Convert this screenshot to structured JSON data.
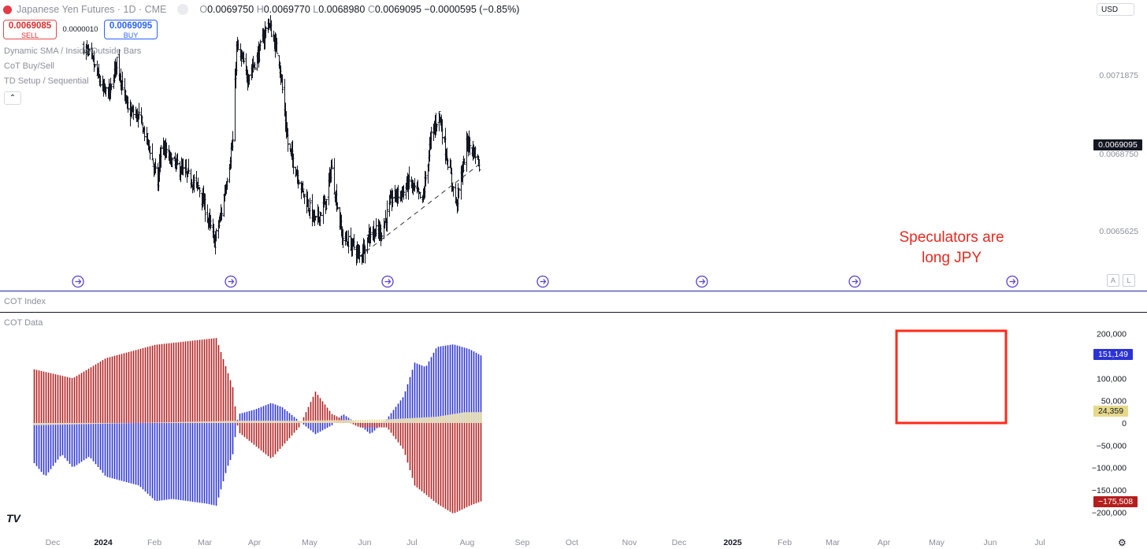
{
  "header": {
    "title": "Japanese Yen Futures · 1D · CME",
    "o_key": "O",
    "o_val": "0.0069750",
    "h_key": "H",
    "h_val": "0.0069770",
    "l_key": "L",
    "l_val": "0.0068980",
    "c_key": "C",
    "c_val": "0.0069095",
    "change": "−0.0000595 (−0.85%)",
    "currency": "USD"
  },
  "trade": {
    "sell_price": "0.0069085",
    "sell_label": "SELL",
    "spread": "0.0000010",
    "buy_price": "0.0069095",
    "buy_label": "BUY"
  },
  "indicators": [
    "Dynamic SMA / Inside/Outside Bars",
    "CoT Buy/Sell",
    "TD Setup / Sequential"
  ],
  "panes": {
    "cot_index": "COT Index",
    "cot_data": "COT Data"
  },
  "annotation": {
    "line1": "Speculators are",
    "line2": "long JPY"
  },
  "colors": {
    "bull": "#2b33d6",
    "bear": "#b41e1e",
    "commercial": "#e6d98a",
    "highlight": "#ff2a1a",
    "separator": "#5b5bb5"
  },
  "chart_data": [
    {
      "type": "ohlc",
      "title": "Japanese Yen Futures",
      "price_ticks": [
        "0.0071875",
        "0.0068750",
        "0.0065625"
      ],
      "last_price_label": "0.0069095",
      "x_ticks": [
        "Dec",
        "2024",
        "Feb",
        "Mar",
        "Apr",
        "May",
        "Jun",
        "Jul",
        "Aug",
        "Sep",
        "Oct",
        "Nov",
        "Dec",
        "2025",
        "Feb",
        "Mar",
        "Apr",
        "May",
        "Jun",
        "Jul"
      ],
      "ylim": [
        0.00648,
        0.00754
      ],
      "close_path": [
        {
          "date": "2024-01-26",
          "close": 0.00738
        },
        {
          "date": "2024-02-05",
          "close": 0.00733
        },
        {
          "date": "2024-02-20",
          "close": 0.0072
        },
        {
          "date": "2024-02-29",
          "close": 0.0072
        },
        {
          "date": "2024-03-08",
          "close": 0.00733
        },
        {
          "date": "2024-03-22",
          "close": 0.00712
        },
        {
          "date": "2024-04-05",
          "close": 0.0071
        },
        {
          "date": "2024-04-19",
          "close": 0.00697
        },
        {
          "date": "2024-04-29",
          "close": 0.00683
        },
        {
          "date": "2024-05-03",
          "close": 0.00698
        },
        {
          "date": "2024-05-17",
          "close": 0.00692
        },
        {
          "date": "2024-06-07",
          "close": 0.00686
        },
        {
          "date": "2024-06-21",
          "close": 0.00681
        },
        {
          "date": "2024-07-10",
          "close": 0.0066
        },
        {
          "date": "2024-07-19",
          "close": 0.00672
        },
        {
          "date": "2024-08-02",
          "close": 0.007
        },
        {
          "date": "2024-08-07",
          "close": 0.00738
        },
        {
          "date": "2024-08-21",
          "close": 0.00726
        },
        {
          "date": "2024-09-04",
          "close": 0.00735
        },
        {
          "date": "2024-09-16",
          "close": 0.00748
        },
        {
          "date": "2024-09-30",
          "close": 0.00733
        },
        {
          "date": "2024-10-11",
          "close": 0.00699
        },
        {
          "date": "2024-10-31",
          "close": 0.00679
        },
        {
          "date": "2024-11-15",
          "close": 0.00668
        },
        {
          "date": "2024-11-29",
          "close": 0.00676
        },
        {
          "date": "2024-12-05",
          "close": 0.0069
        },
        {
          "date": "2024-12-19",
          "close": 0.00662
        },
        {
          "date": "2025-01-03",
          "close": 0.00658
        },
        {
          "date": "2025-01-10",
          "close": 0.00654
        },
        {
          "date": "2025-01-24",
          "close": 0.00664
        },
        {
          "date": "2025-02-07",
          "close": 0.00664
        },
        {
          "date": "2025-02-21",
          "close": 0.00678
        },
        {
          "date": "2025-03-07",
          "close": 0.0068
        },
        {
          "date": "2025-03-14",
          "close": 0.00684
        },
        {
          "date": "2025-03-31",
          "close": 0.00676
        },
        {
          "date": "2025-04-11",
          "close": 0.00702
        },
        {
          "date": "2025-04-21",
          "close": 0.00711
        },
        {
          "date": "2025-05-02",
          "close": 0.00692
        },
        {
          "date": "2025-05-13",
          "close": 0.00675
        },
        {
          "date": "2025-05-27",
          "close": 0.007
        },
        {
          "date": "2025-06-06",
          "close": 0.00695
        },
        {
          "date": "2025-06-11",
          "close": 0.00691
        }
      ],
      "trendline": [
        {
          "date": "2025-01-10",
          "price": 0.00654
        },
        {
          "date": "2025-06-16",
          "price": 0.00692
        }
      ]
    },
    {
      "type": "bar",
      "title": "COT Data",
      "y_ticks": [
        "200,000",
        "150,000",
        "100,000",
        "50,000",
        "0",
        "−50,000",
        "−100,000",
        "−150,000",
        "−200,000"
      ],
      "ylim": [
        -215000,
        215000
      ],
      "last_values": [
        {
          "label": "151,149",
          "value": 151149
        },
        {
          "label": "24,359",
          "value": 24359
        },
        {
          "label": "−175,508",
          "value": -175508
        }
      ],
      "speculators_net_path": [
        {
          "date": "2023-11-24",
          "value": -90000
        },
        {
          "date": "2023-12-08",
          "value": -120000
        },
        {
          "date": "2023-12-29",
          "value": -70000
        },
        {
          "date": "2024-01-12",
          "value": -100000
        },
        {
          "date": "2024-02-02",
          "value": -75000
        },
        {
          "date": "2024-02-23",
          "value": -120000
        },
        {
          "date": "2024-03-15",
          "value": -130000
        },
        {
          "date": "2024-04-05",
          "value": -140000
        },
        {
          "date": "2024-04-26",
          "value": -175000
        },
        {
          "date": "2024-05-17",
          "value": -170000
        },
        {
          "date": "2024-06-07",
          "value": -175000
        },
        {
          "date": "2024-06-28",
          "value": -180000
        },
        {
          "date": "2024-07-12",
          "value": -185000
        },
        {
          "date": "2024-07-26",
          "value": -100000
        },
        {
          "date": "2024-08-02",
          "value": -70000
        },
        {
          "date": "2024-08-09",
          "value": 20000
        },
        {
          "date": "2024-08-30",
          "value": 30000
        },
        {
          "date": "2024-09-20",
          "value": 45000
        },
        {
          "date": "2024-10-04",
          "value": 35000
        },
        {
          "date": "2024-10-25",
          "value": 5000
        },
        {
          "date": "2024-11-15",
          "value": -25000
        },
        {
          "date": "2024-12-06",
          "value": -5000
        },
        {
          "date": "2024-12-20",
          "value": 20000
        },
        {
          "date": "2025-01-10",
          "value": -5000
        },
        {
          "date": "2025-01-24",
          "value": -25000
        },
        {
          "date": "2025-02-14",
          "value": 10000
        },
        {
          "date": "2025-03-07",
          "value": 60000
        },
        {
          "date": "2025-03-21",
          "value": 135000
        },
        {
          "date": "2025-04-04",
          "value": 125000
        },
        {
          "date": "2025-04-18",
          "value": 170000
        },
        {
          "date": "2025-05-09",
          "value": 176000
        },
        {
          "date": "2025-05-30",
          "value": 165000
        },
        {
          "date": "2025-06-13",
          "value": 151149
        }
      ],
      "commercials_net_path": [
        {
          "date": "2023-11-24",
          "value": 120000
        },
        {
          "date": "2024-01-12",
          "value": 100000
        },
        {
          "date": "2024-02-23",
          "value": 145000
        },
        {
          "date": "2024-04-26",
          "value": 175000
        },
        {
          "date": "2024-07-12",
          "value": 190000
        },
        {
          "date": "2024-08-02",
          "value": 80000
        },
        {
          "date": "2024-08-09",
          "value": -20000
        },
        {
          "date": "2024-09-20",
          "value": -80000
        },
        {
          "date": "2024-10-25",
          "value": -10000
        },
        {
          "date": "2024-11-15",
          "value": 70000
        },
        {
          "date": "2024-12-06",
          "value": 20000
        },
        {
          "date": "2025-01-10",
          "value": -10000
        },
        {
          "date": "2025-02-14",
          "value": -10000
        },
        {
          "date": "2025-03-07",
          "value": -60000
        },
        {
          "date": "2025-03-21",
          "value": -140000
        },
        {
          "date": "2025-04-18",
          "value": -180000
        },
        {
          "date": "2025-05-09",
          "value": -203000
        },
        {
          "date": "2025-05-30",
          "value": -185000
        },
        {
          "date": "2025-06-13",
          "value": -175508
        }
      ],
      "small_traders_net_path": [
        {
          "date": "2023-11-24",
          "value": -5000
        },
        {
          "date": "2024-08-09",
          "value": 5000
        },
        {
          "date": "2024-10-25",
          "value": 5000
        },
        {
          "date": "2025-02-14",
          "value": 8000
        },
        {
          "date": "2025-04-18",
          "value": 14000
        },
        {
          "date": "2025-05-23",
          "value": 24000
        },
        {
          "date": "2025-06-13",
          "value": 24359
        }
      ]
    }
  ]
}
